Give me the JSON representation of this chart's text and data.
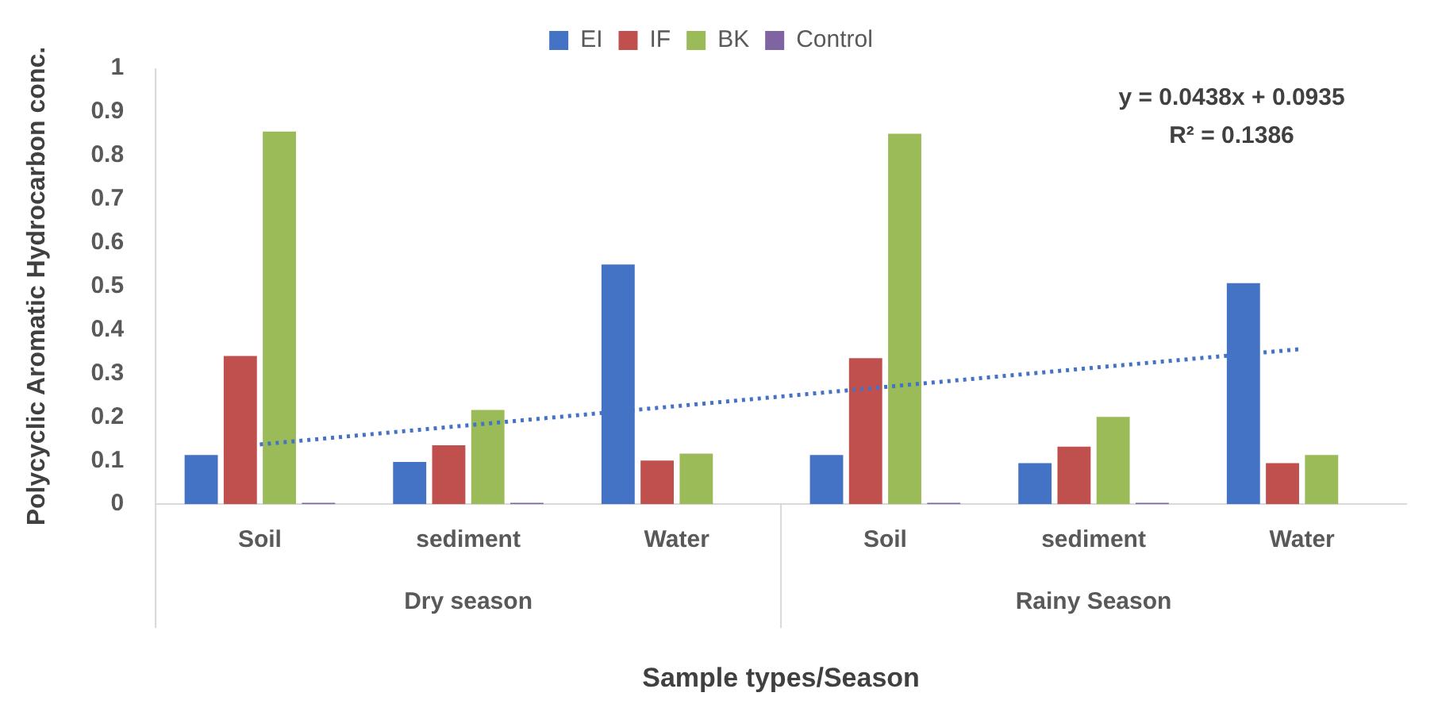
{
  "chart_data": {
    "type": "bar",
    "xlabel": "Sample types/Season",
    "ylabel": "Polycyclic Aromatic Hydrocarbon conc.",
    "categories": [
      "Soil",
      "sediment",
      "Water",
      "Soil",
      "sediment",
      "Water"
    ],
    "series": [
      {
        "name": "EI",
        "color": "#4472c4",
        "values": [
          0.113,
          0.097,
          0.55,
          0.113,
          0.094,
          0.507
        ]
      },
      {
        "name": "IF",
        "color": "#c0504d",
        "values": [
          0.34,
          0.135,
          0.1,
          0.335,
          0.132,
          0.094
        ]
      },
      {
        "name": "BK",
        "color": "#9bbb59",
        "values": [
          0.855,
          0.216,
          0.116,
          0.85,
          0.2,
          0.113
        ]
      },
      {
        "name": "Control",
        "color": "#8064a2",
        "values": [
          0.003,
          0.003,
          0,
          0.003,
          0.003,
          0
        ]
      },
      {
        "type": "line",
        "color": "#4472c4",
        "line_style": "dotted",
        "marker": "none",
        "values": [
          0.137,
          0.181,
          0.225,
          0.269,
          0.313,
          0.356
        ]
      }
    ],
    "ylim": [
      0,
      1
    ],
    "yticks": [
      0,
      0.1,
      0.2,
      0.3,
      0.4,
      0.5,
      0.6,
      0.7,
      0.8,
      0.9,
      1
    ],
    "grid": false,
    "legend": "top",
    "annotations": [
      "Dry season",
      "Rainy Season",
      "y = 0.0438x + 0.0935",
      "R² = 0.1386"
    ]
  }
}
